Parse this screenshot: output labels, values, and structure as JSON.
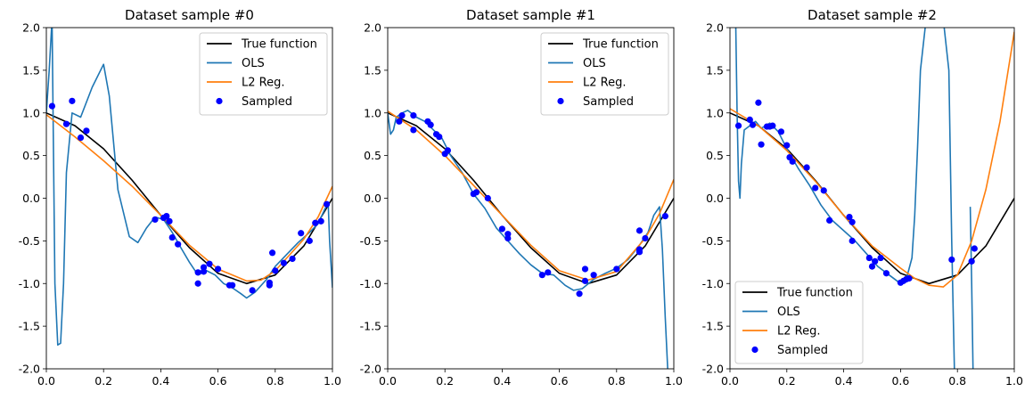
{
  "chart_data": [
    {
      "type": "line",
      "title": "Dataset sample #0",
      "xlim": [
        0,
        1
      ],
      "ylim": [
        -2,
        2
      ],
      "xticks": [
        "0.0",
        "0.2",
        "0.4",
        "0.6",
        "0.8",
        "1.0"
      ],
      "yticks": [
        "-2.0",
        "-1.5",
        "-1.0",
        "-0.5",
        "0.0",
        "0.5",
        "1.0",
        "1.5",
        "2.0"
      ],
      "grid": false,
      "legend_position": "upper right",
      "legend": [
        "True function",
        "OLS",
        "L2 Reg.",
        "Sampled"
      ],
      "colors": {
        "true_function": "#000000",
        "ols": "#1f77b4",
        "l2": "#ff7f0e",
        "sampled": "#0000ff"
      },
      "series": [
        {
          "name": "True function",
          "x": [
            0,
            0.1,
            0.2,
            0.3,
            0.4,
            0.5,
            0.6,
            0.7,
            0.8,
            0.9,
            1.0
          ],
          "y": [
            1.0,
            0.85,
            0.58,
            0.21,
            -0.2,
            -0.58,
            -0.88,
            -1.0,
            -0.9,
            -0.56,
            0.0
          ]
        },
        {
          "name": "OLS",
          "x": [
            0,
            0.01,
            0.02,
            0.03,
            0.04,
            0.05,
            0.06,
            0.07,
            0.09,
            0.12,
            0.16,
            0.2,
            0.22,
            0.25,
            0.29,
            0.32,
            0.35,
            0.38,
            0.41,
            0.44,
            0.47,
            0.5,
            0.53,
            0.56,
            0.59,
            0.62,
            0.65,
            0.68,
            0.7,
            0.73,
            0.77,
            0.8,
            0.84,
            0.88,
            0.92,
            0.95,
            0.97,
            0.985,
            0.99,
            1.0
          ],
          "y": [
            1.0,
            1.5,
            2.1,
            -1.0,
            -1.72,
            -1.7,
            -1.0,
            0.3,
            1.0,
            0.95,
            1.3,
            1.57,
            1.2,
            0.1,
            -0.45,
            -0.52,
            -0.35,
            -0.22,
            -0.25,
            -0.4,
            -0.58,
            -0.75,
            -0.9,
            -0.85,
            -0.9,
            -1.0,
            -1.05,
            -1.12,
            -1.17,
            -1.1,
            -0.95,
            -0.8,
            -0.66,
            -0.52,
            -0.4,
            -0.3,
            -0.15,
            -0.05,
            -0.5,
            -1.05
          ]
        },
        {
          "name": "L2 Reg.",
          "x": [
            0,
            0.1,
            0.2,
            0.3,
            0.4,
            0.5,
            0.6,
            0.7,
            0.75,
            0.8,
            0.9,
            0.95,
            1.0
          ],
          "y": [
            0.98,
            0.72,
            0.44,
            0.14,
            -0.2,
            -0.55,
            -0.83,
            -0.97,
            -0.96,
            -0.85,
            -0.48,
            -0.22,
            0.14
          ]
        },
        {
          "name": "Sampled",
          "x": [
            0.02,
            0.07,
            0.09,
            0.12,
            0.14,
            0.38,
            0.41,
            0.42,
            0.43,
            0.44,
            0.46,
            0.53,
            0.53,
            0.55,
            0.55,
            0.57,
            0.6,
            0.64,
            0.65,
            0.72,
            0.78,
            0.78,
            0.79,
            0.8,
            0.83,
            0.86,
            0.89,
            0.92,
            0.94,
            0.96,
            0.98
          ],
          "y": [
            1.08,
            0.87,
            1.14,
            0.71,
            0.79,
            -0.25,
            -0.23,
            -0.21,
            -0.27,
            -0.46,
            -0.54,
            -0.87,
            -1.0,
            -0.86,
            -0.81,
            -0.77,
            -0.83,
            -1.02,
            -1.02,
            -1.08,
            -0.99,
            -1.02,
            -0.64,
            -0.85,
            -0.76,
            -0.71,
            -0.41,
            -0.5,
            -0.29,
            -0.27,
            -0.07
          ]
        }
      ]
    },
    {
      "type": "line",
      "title": "Dataset sample #1",
      "xlim": [
        0,
        1
      ],
      "ylim": [
        -2,
        2
      ],
      "xticks": [
        "0.0",
        "0.2",
        "0.4",
        "0.6",
        "0.8",
        "1.0"
      ],
      "yticks": [
        "-2.0",
        "-1.5",
        "-1.0",
        "-0.5",
        "0.0",
        "0.5",
        "1.0",
        "1.5",
        "2.0"
      ],
      "grid": false,
      "legend_position": "upper right",
      "legend": [
        "True function",
        "OLS",
        "L2 Reg.",
        "Sampled"
      ],
      "colors": {
        "true_function": "#000000",
        "ols": "#1f77b4",
        "l2": "#ff7f0e",
        "sampled": "#0000ff"
      },
      "series": [
        {
          "name": "True function",
          "x": [
            0,
            0.1,
            0.2,
            0.3,
            0.4,
            0.5,
            0.6,
            0.7,
            0.8,
            0.9,
            1.0
          ],
          "y": [
            1.0,
            0.85,
            0.58,
            0.21,
            -0.2,
            -0.58,
            -0.88,
            -1.0,
            -0.9,
            -0.56,
            0.0
          ]
        },
        {
          "name": "OLS",
          "x": [
            0,
            0.01,
            0.02,
            0.03,
            0.05,
            0.07,
            0.1,
            0.13,
            0.16,
            0.19,
            0.22,
            0.26,
            0.3,
            0.34,
            0.38,
            0.42,
            0.46,
            0.5,
            0.54,
            0.58,
            0.62,
            0.65,
            0.68,
            0.72,
            0.76,
            0.8,
            0.84,
            0.88,
            0.91,
            0.93,
            0.95,
            0.96,
            0.97,
            0.98
          ],
          "y": [
            1.0,
            0.75,
            0.8,
            0.95,
            1.0,
            1.03,
            0.95,
            0.9,
            0.8,
            0.7,
            0.5,
            0.3,
            0.05,
            -0.12,
            -0.35,
            -0.5,
            -0.65,
            -0.78,
            -0.88,
            -0.9,
            -1.02,
            -1.08,
            -1.06,
            -0.95,
            -0.88,
            -0.82,
            -0.72,
            -0.55,
            -0.4,
            -0.2,
            -0.1,
            -0.6,
            -1.4,
            -2.1
          ]
        },
        {
          "name": "L2 Reg.",
          "x": [
            0,
            0.1,
            0.2,
            0.3,
            0.4,
            0.5,
            0.6,
            0.7,
            0.8,
            0.9,
            0.95,
            1.0
          ],
          "y": [
            1.02,
            0.8,
            0.5,
            0.15,
            -0.2,
            -0.55,
            -0.85,
            -0.96,
            -0.86,
            -0.47,
            -0.18,
            0.22
          ]
        },
        {
          "name": "Sampled",
          "x": [
            0.04,
            0.05,
            0.09,
            0.09,
            0.14,
            0.15,
            0.17,
            0.18,
            0.2,
            0.21,
            0.3,
            0.31,
            0.35,
            0.4,
            0.42,
            0.42,
            0.54,
            0.56,
            0.67,
            0.69,
            0.69,
            0.72,
            0.8,
            0.88,
            0.88,
            0.88,
            0.9,
            0.97
          ],
          "y": [
            0.9,
            0.97,
            0.97,
            0.8,
            0.9,
            0.86,
            0.75,
            0.72,
            0.52,
            0.56,
            0.05,
            0.07,
            0.0,
            -0.36,
            -0.42,
            -0.47,
            -0.9,
            -0.87,
            -1.12,
            -0.97,
            -0.83,
            -0.9,
            -0.83,
            -0.6,
            -0.63,
            -0.38,
            -0.47,
            -0.21
          ]
        }
      ]
    },
    {
      "type": "line",
      "title": "Dataset sample #2",
      "xlim": [
        0,
        1
      ],
      "ylim": [
        -2,
        2
      ],
      "xticks": [
        "0.0",
        "0.2",
        "0.4",
        "0.6",
        "0.8",
        "1.0"
      ],
      "yticks": [
        "-2.0",
        "-1.5",
        "-1.0",
        "-0.5",
        "0.0",
        "0.5",
        "1.0",
        "1.5",
        "2.0"
      ],
      "grid": false,
      "legend_position": "lower left",
      "legend": [
        "True function",
        "OLS",
        "L2 Reg.",
        "Sampled"
      ],
      "colors": {
        "true_function": "#000000",
        "ols": "#1f77b4",
        "l2": "#ff7f0e",
        "sampled": "#0000ff"
      },
      "series": [
        {
          "name": "True function",
          "x": [
            0,
            0.1,
            0.2,
            0.3,
            0.4,
            0.5,
            0.6,
            0.7,
            0.8,
            0.9,
            1.0
          ],
          "y": [
            1.0,
            0.85,
            0.58,
            0.21,
            -0.2,
            -0.58,
            -0.88,
            -1.0,
            -0.9,
            -0.56,
            0.0
          ]
        },
        {
          "name": "OLS",
          "x": [
            0.02,
            0.025,
            0.03,
            0.035,
            0.04,
            0.05,
            0.07,
            0.09,
            0.11,
            0.14,
            0.17,
            0.2,
            0.24,
            0.28,
            0.32,
            0.36,
            0.4,
            0.44,
            0.48,
            0.52,
            0.56,
            0.6,
            0.62,
            0.64,
            0.65,
            0.66,
            0.67,
            0.69,
            0.72,
            0.75,
            0.77,
            0.78,
            0.79
          ],
          "y": [
            2.1,
            1.0,
            0.2,
            0.0,
            0.4,
            0.8,
            0.85,
            0.9,
            0.82,
            0.88,
            0.78,
            0.58,
            0.35,
            0.15,
            -0.08,
            -0.26,
            -0.38,
            -0.5,
            -0.65,
            -0.8,
            -0.9,
            -1.0,
            -0.95,
            -0.7,
            -0.2,
            0.6,
            1.5,
            2.1,
            2.1,
            2.1,
            1.5,
            -0.5,
            -2.1
          ]
        },
        {
          "name": "OLS",
          "x": [
            0.845,
            0.85,
            0.855,
            0.86
          ],
          "y": [
            -0.1,
            -1.0,
            -2.0,
            -2.1
          ]
        },
        {
          "name": "L2 Reg.",
          "x": [
            0,
            0.1,
            0.2,
            0.3,
            0.4,
            0.5,
            0.6,
            0.65,
            0.7,
            0.75,
            0.8,
            0.85,
            0.9,
            0.95,
            1.0
          ],
          "y": [
            1.05,
            0.85,
            0.56,
            0.2,
            -0.2,
            -0.56,
            -0.82,
            -0.94,
            -1.02,
            -1.04,
            -0.9,
            -0.5,
            0.1,
            0.9,
            1.95
          ]
        },
        {
          "name": "Sampled",
          "x": [
            0.03,
            0.07,
            0.08,
            0.1,
            0.11,
            0.13,
            0.14,
            0.15,
            0.18,
            0.2,
            0.21,
            0.22,
            0.27,
            0.3,
            0.33,
            0.35,
            0.42,
            0.43,
            0.43,
            0.49,
            0.5,
            0.51,
            0.53,
            0.55,
            0.6,
            0.61,
            0.62,
            0.63,
            0.78,
            0.85,
            0.86
          ],
          "y": [
            0.85,
            0.92,
            0.86,
            1.12,
            0.63,
            0.84,
            0.84,
            0.85,
            0.78,
            0.62,
            0.48,
            0.43,
            0.36,
            0.12,
            0.09,
            -0.26,
            -0.22,
            -0.28,
            -0.5,
            -0.7,
            -0.8,
            -0.74,
            -0.7,
            -0.88,
            -0.99,
            -0.97,
            -0.95,
            -0.94,
            -0.72,
            -0.74,
            -0.59
          ]
        }
      ]
    }
  ]
}
